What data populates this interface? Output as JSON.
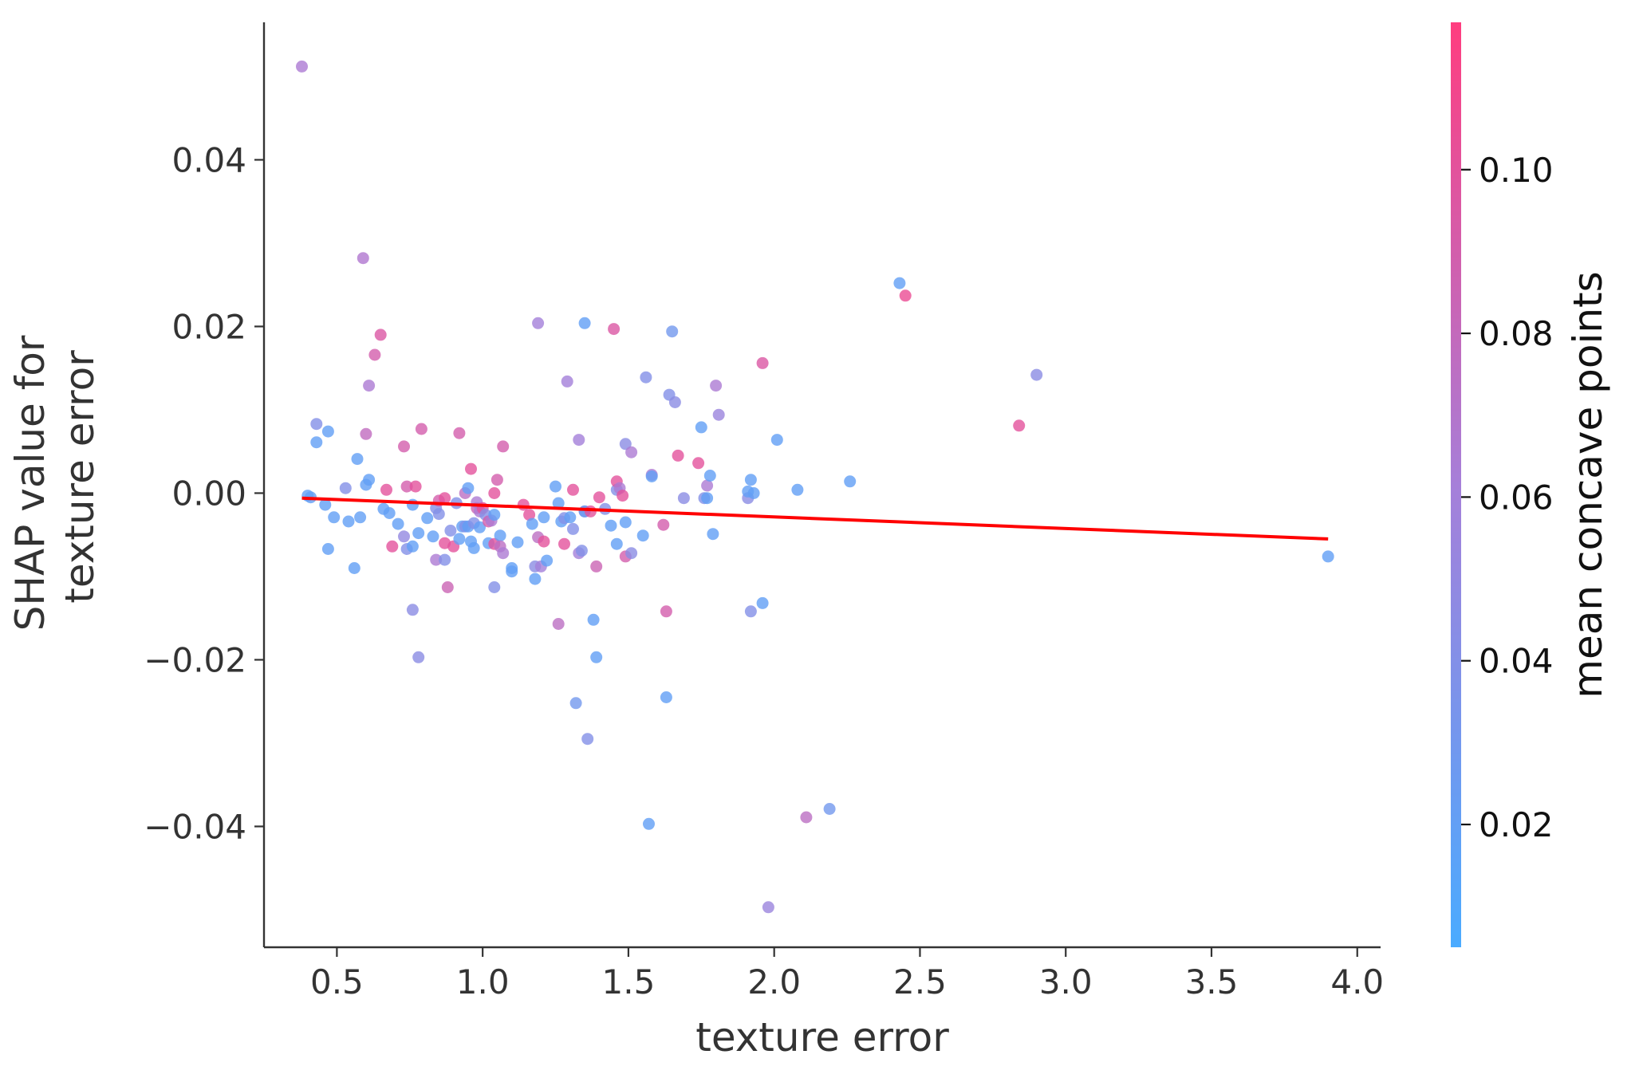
{
  "chart_data": {
    "type": "scatter",
    "xlabel": "texture error",
    "ylabel_lines": [
      "SHAP value for",
      "texture error"
    ],
    "xlim": [
      0.25,
      4.08
    ],
    "ylim": [
      -0.0545,
      0.0565
    ],
    "xticks": [
      0.5,
      1.0,
      1.5,
      2.0,
      2.5,
      3.0,
      3.5,
      4.0
    ],
    "xtick_labels": [
      "0.5",
      "1.0",
      "1.5",
      "2.0",
      "2.5",
      "3.0",
      "3.5",
      "4.0"
    ],
    "yticks": [
      -0.04,
      -0.02,
      0.0,
      0.02,
      0.04
    ],
    "ytick_labels": [
      "−0.04",
      "−0.02",
      "0.00",
      "0.02",
      "0.04"
    ],
    "grid": false,
    "colorbar": {
      "label": "mean concave points",
      "range": [
        0.005,
        0.118
      ],
      "ticks": [
        0.02,
        0.04,
        0.06,
        0.08,
        0.1
      ],
      "tick_labels": [
        "0.02",
        "0.04",
        "0.06",
        "0.08",
        "0.10"
      ],
      "color_low": "#4aabff",
      "color_mid": "#a67fd9",
      "color_high": "#ff3d7f"
    },
    "trend_line": {
      "color": "#ff0000",
      "x": [
        0.38,
        3.9
      ],
      "y": [
        -0.0006,
        -0.0055
      ]
    },
    "points": [
      {
        "x": 0.38,
        "y": 0.0512,
        "c": 0.065
      },
      {
        "x": 0.4,
        "y": -0.0003,
        "c": 0.02
      },
      {
        "x": 0.41,
        "y": -0.0005,
        "c": 0.02
      },
      {
        "x": 0.43,
        "y": 0.0083,
        "c": 0.04
      },
      {
        "x": 0.43,
        "y": 0.0061,
        "c": 0.02
      },
      {
        "x": 0.46,
        "y": -0.0014,
        "c": 0.02
      },
      {
        "x": 0.47,
        "y": 0.0074,
        "c": 0.02
      },
      {
        "x": 0.47,
        "y": -0.0067,
        "c": 0.02
      },
      {
        "x": 0.49,
        "y": -0.0029,
        "c": 0.02
      },
      {
        "x": 0.53,
        "y": 0.0006,
        "c": 0.04
      },
      {
        "x": 0.54,
        "y": -0.0034,
        "c": 0.02
      },
      {
        "x": 0.56,
        "y": -0.009,
        "c": 0.02
      },
      {
        "x": 0.57,
        "y": 0.0041,
        "c": 0.02
      },
      {
        "x": 0.58,
        "y": -0.0029,
        "c": 0.02
      },
      {
        "x": 0.59,
        "y": 0.0282,
        "c": 0.068
      },
      {
        "x": 0.6,
        "y": 0.001,
        "c": 0.02
      },
      {
        "x": 0.6,
        "y": 0.0071,
        "c": 0.078
      },
      {
        "x": 0.61,
        "y": 0.0129,
        "c": 0.065
      },
      {
        "x": 0.61,
        "y": 0.0016,
        "c": 0.02
      },
      {
        "x": 0.63,
        "y": 0.0166,
        "c": 0.09
      },
      {
        "x": 0.65,
        "y": 0.019,
        "c": 0.095
      },
      {
        "x": 0.66,
        "y": -0.0019,
        "c": 0.02
      },
      {
        "x": 0.67,
        "y": 0.0004,
        "c": 0.1
      },
      {
        "x": 0.68,
        "y": -0.0024,
        "c": 0.02
      },
      {
        "x": 0.69,
        "y": -0.0064,
        "c": 0.1
      },
      {
        "x": 0.71,
        "y": -0.0037,
        "c": 0.02
      },
      {
        "x": 0.73,
        "y": 0.0056,
        "c": 0.09
      },
      {
        "x": 0.73,
        "y": -0.0052,
        "c": 0.05
      },
      {
        "x": 0.74,
        "y": 0.0008,
        "c": 0.09
      },
      {
        "x": 0.74,
        "y": -0.0067,
        "c": 0.04
      },
      {
        "x": 0.76,
        "y": -0.0014,
        "c": 0.02
      },
      {
        "x": 0.76,
        "y": -0.0064,
        "c": 0.02
      },
      {
        "x": 0.76,
        "y": -0.014,
        "c": 0.045
      },
      {
        "x": 0.77,
        "y": 0.0008,
        "c": 0.1
      },
      {
        "x": 0.78,
        "y": -0.0197,
        "c": 0.045
      },
      {
        "x": 0.78,
        "y": -0.0048,
        "c": 0.02
      },
      {
        "x": 0.79,
        "y": 0.0077,
        "c": 0.09
      },
      {
        "x": 0.81,
        "y": -0.003,
        "c": 0.02
      },
      {
        "x": 0.83,
        "y": -0.0052,
        "c": 0.02
      },
      {
        "x": 0.84,
        "y": -0.008,
        "c": 0.065
      },
      {
        "x": 0.84,
        "y": -0.0018,
        "c": 0.04
      },
      {
        "x": 0.85,
        "y": -0.0009,
        "c": 0.09
      },
      {
        "x": 0.85,
        "y": -0.0025,
        "c": 0.04
      },
      {
        "x": 0.87,
        "y": -0.008,
        "c": 0.04
      },
      {
        "x": 0.87,
        "y": -0.0006,
        "c": 0.1
      },
      {
        "x": 0.87,
        "y": -0.006,
        "c": 0.1
      },
      {
        "x": 0.88,
        "y": -0.0113,
        "c": 0.085
      },
      {
        "x": 0.89,
        "y": -0.0045,
        "c": 0.04
      },
      {
        "x": 0.9,
        "y": -0.0064,
        "c": 0.1
      },
      {
        "x": 0.91,
        "y": -0.0012,
        "c": 0.04
      },
      {
        "x": 0.92,
        "y": 0.0072,
        "c": 0.09
      },
      {
        "x": 0.92,
        "y": -0.0055,
        "c": 0.02
      },
      {
        "x": 0.93,
        "y": -0.004,
        "c": 0.02
      },
      {
        "x": 0.94,
        "y": 0.0,
        "c": 0.075
      },
      {
        "x": 0.94,
        "y": -0.004,
        "c": 0.04
      },
      {
        "x": 0.95,
        "y": 0.0006,
        "c": 0.02
      },
      {
        "x": 0.95,
        "y": -0.004,
        "c": 0.02
      },
      {
        "x": 0.96,
        "y": 0.0029,
        "c": 0.1
      },
      {
        "x": 0.96,
        "y": -0.0058,
        "c": 0.02
      },
      {
        "x": 0.97,
        "y": -0.0066,
        "c": 0.02
      },
      {
        "x": 0.97,
        "y": -0.0036,
        "c": 0.04
      },
      {
        "x": 0.98,
        "y": -0.0018,
        "c": 0.085
      },
      {
        "x": 0.98,
        "y": -0.0011,
        "c": 0.065
      },
      {
        "x": 0.99,
        "y": -0.0022,
        "c": 0.065
      },
      {
        "x": 0.99,
        "y": -0.0041,
        "c": 0.02
      },
      {
        "x": 1.0,
        "y": -0.0018,
        "c": 0.1
      },
      {
        "x": 1.01,
        "y": -0.0026,
        "c": 0.04
      },
      {
        "x": 1.02,
        "y": -0.0034,
        "c": 0.09
      },
      {
        "x": 1.02,
        "y": -0.006,
        "c": 0.02
      },
      {
        "x": 1.03,
        "y": -0.0033,
        "c": 0.065
      },
      {
        "x": 1.04,
        "y": -0.0113,
        "c": 0.04
      },
      {
        "x": 1.04,
        "y": -0.0026,
        "c": 0.02
      },
      {
        "x": 1.04,
        "y": 0.0,
        "c": 0.1
      },
      {
        "x": 1.04,
        "y": -0.0061,
        "c": 0.1
      },
      {
        "x": 1.05,
        "y": 0.0016,
        "c": 0.09
      },
      {
        "x": 1.06,
        "y": -0.0051,
        "c": 0.02
      },
      {
        "x": 1.06,
        "y": -0.0064,
        "c": 0.075
      },
      {
        "x": 1.07,
        "y": -0.0072,
        "c": 0.065
      },
      {
        "x": 1.07,
        "y": 0.0056,
        "c": 0.09
      },
      {
        "x": 1.1,
        "y": -0.009,
        "c": 0.02
      },
      {
        "x": 1.1,
        "y": -0.0094,
        "c": 0.02
      },
      {
        "x": 1.12,
        "y": -0.0059,
        "c": 0.02
      },
      {
        "x": 1.14,
        "y": -0.0014,
        "c": 0.1
      },
      {
        "x": 1.16,
        "y": -0.0026,
        "c": 0.1
      },
      {
        "x": 1.17,
        "y": -0.0037,
        "c": 0.02
      },
      {
        "x": 1.18,
        "y": -0.0103,
        "c": 0.02
      },
      {
        "x": 1.18,
        "y": -0.0088,
        "c": 0.045
      },
      {
        "x": 1.19,
        "y": -0.0053,
        "c": 0.075
      },
      {
        "x": 1.19,
        "y": 0.0204,
        "c": 0.06
      },
      {
        "x": 1.2,
        "y": -0.0088,
        "c": 0.06
      },
      {
        "x": 1.21,
        "y": -0.0029,
        "c": 0.02
      },
      {
        "x": 1.21,
        "y": -0.0058,
        "c": 0.1
      },
      {
        "x": 1.22,
        "y": -0.0081,
        "c": 0.02
      },
      {
        "x": 1.25,
        "y": 0.0008,
        "c": 0.02
      },
      {
        "x": 1.26,
        "y": -0.0012,
        "c": 0.02
      },
      {
        "x": 1.26,
        "y": -0.0157,
        "c": 0.075
      },
      {
        "x": 1.27,
        "y": -0.0034,
        "c": 0.02
      },
      {
        "x": 1.28,
        "y": -0.0061,
        "c": 0.1
      },
      {
        "x": 1.28,
        "y": -0.003,
        "c": 0.04
      },
      {
        "x": 1.29,
        "y": 0.0134,
        "c": 0.06
      },
      {
        "x": 1.3,
        "y": -0.0029,
        "c": 0.02
      },
      {
        "x": 1.31,
        "y": 0.0004,
        "c": 0.1
      },
      {
        "x": 1.31,
        "y": -0.0043,
        "c": 0.04
      },
      {
        "x": 1.32,
        "y": -0.0252,
        "c": 0.03
      },
      {
        "x": 1.33,
        "y": 0.0064,
        "c": 0.06
      },
      {
        "x": 1.33,
        "y": -0.0072,
        "c": 0.06
      },
      {
        "x": 1.34,
        "y": -0.0069,
        "c": 0.04
      },
      {
        "x": 1.35,
        "y": -0.0022,
        "c": 0.065
      },
      {
        "x": 1.35,
        "y": -0.0022,
        "c": 0.02
      },
      {
        "x": 1.35,
        "y": 0.0204,
        "c": 0.02
      },
      {
        "x": 1.36,
        "y": -0.0295,
        "c": 0.04
      },
      {
        "x": 1.37,
        "y": -0.0022,
        "c": 0.1
      },
      {
        "x": 1.38,
        "y": -0.0152,
        "c": 0.02
      },
      {
        "x": 1.39,
        "y": -0.0197,
        "c": 0.02
      },
      {
        "x": 1.39,
        "y": -0.0088,
        "c": 0.085
      },
      {
        "x": 1.4,
        "y": -0.0005,
        "c": 0.1
      },
      {
        "x": 1.42,
        "y": -0.0019,
        "c": 0.04
      },
      {
        "x": 1.44,
        "y": -0.0039,
        "c": 0.02
      },
      {
        "x": 1.45,
        "y": 0.0197,
        "c": 0.095
      },
      {
        "x": 1.46,
        "y": -0.0061,
        "c": 0.02
      },
      {
        "x": 1.46,
        "y": 0.0004,
        "c": 0.04
      },
      {
        "x": 1.46,
        "y": 0.0014,
        "c": 0.1
      },
      {
        "x": 1.47,
        "y": 0.0006,
        "c": 0.065
      },
      {
        "x": 1.48,
        "y": -0.0003,
        "c": 0.1
      },
      {
        "x": 1.49,
        "y": -0.0035,
        "c": 0.02
      },
      {
        "x": 1.49,
        "y": 0.0059,
        "c": 0.045
      },
      {
        "x": 1.49,
        "y": -0.0076,
        "c": 0.09
      },
      {
        "x": 1.51,
        "y": 0.0049,
        "c": 0.065
      },
      {
        "x": 1.51,
        "y": -0.0072,
        "c": 0.045
      },
      {
        "x": 1.55,
        "y": -0.0051,
        "c": 0.02
      },
      {
        "x": 1.56,
        "y": 0.0139,
        "c": 0.04
      },
      {
        "x": 1.57,
        "y": -0.0397,
        "c": 0.02
      },
      {
        "x": 1.58,
        "y": 0.0022,
        "c": 0.065
      },
      {
        "x": 1.58,
        "y": 0.002,
        "c": 0.02
      },
      {
        "x": 1.62,
        "y": -0.0038,
        "c": 0.09
      },
      {
        "x": 1.63,
        "y": -0.0245,
        "c": 0.02
      },
      {
        "x": 1.63,
        "y": -0.0142,
        "c": 0.09
      },
      {
        "x": 1.64,
        "y": 0.0118,
        "c": 0.04
      },
      {
        "x": 1.65,
        "y": 0.0194,
        "c": 0.03
      },
      {
        "x": 1.66,
        "y": 0.0109,
        "c": 0.045
      },
      {
        "x": 1.67,
        "y": 0.0045,
        "c": 0.1
      },
      {
        "x": 1.69,
        "y": -0.0006,
        "c": 0.045
      },
      {
        "x": 1.74,
        "y": 0.0036,
        "c": 0.1
      },
      {
        "x": 1.75,
        "y": 0.0079,
        "c": 0.02
      },
      {
        "x": 1.76,
        "y": -0.0006,
        "c": 0.04
      },
      {
        "x": 1.77,
        "y": -0.0006,
        "c": 0.02
      },
      {
        "x": 1.77,
        "y": 0.0009,
        "c": 0.065
      },
      {
        "x": 1.78,
        "y": 0.0021,
        "c": 0.02
      },
      {
        "x": 1.79,
        "y": -0.0049,
        "c": 0.02
      },
      {
        "x": 1.8,
        "y": 0.0129,
        "c": 0.065
      },
      {
        "x": 1.81,
        "y": 0.0094,
        "c": 0.055
      },
      {
        "x": 1.91,
        "y": -0.0006,
        "c": 0.045
      },
      {
        "x": 1.91,
        "y": 0.0002,
        "c": 0.02
      },
      {
        "x": 1.92,
        "y": 0.0016,
        "c": 0.02
      },
      {
        "x": 1.92,
        "y": -0.0142,
        "c": 0.04
      },
      {
        "x": 1.93,
        "y": 0.0,
        "c": 0.02
      },
      {
        "x": 1.96,
        "y": 0.0156,
        "c": 0.095
      },
      {
        "x": 1.96,
        "y": -0.0132,
        "c": 0.02
      },
      {
        "x": 1.98,
        "y": -0.0497,
        "c": 0.055
      },
      {
        "x": 2.01,
        "y": 0.0064,
        "c": 0.02
      },
      {
        "x": 2.08,
        "y": 0.0004,
        "c": 0.02
      },
      {
        "x": 2.11,
        "y": -0.0389,
        "c": 0.075
      },
      {
        "x": 2.19,
        "y": -0.0379,
        "c": 0.03
      },
      {
        "x": 2.26,
        "y": 0.0014,
        "c": 0.02
      },
      {
        "x": 2.43,
        "y": 0.0252,
        "c": 0.02
      },
      {
        "x": 2.45,
        "y": 0.0237,
        "c": 0.105
      },
      {
        "x": 2.84,
        "y": 0.0081,
        "c": 0.1
      },
      {
        "x": 2.9,
        "y": 0.0142,
        "c": 0.045
      },
      {
        "x": 3.9,
        "y": -0.0076,
        "c": 0.02
      }
    ]
  }
}
